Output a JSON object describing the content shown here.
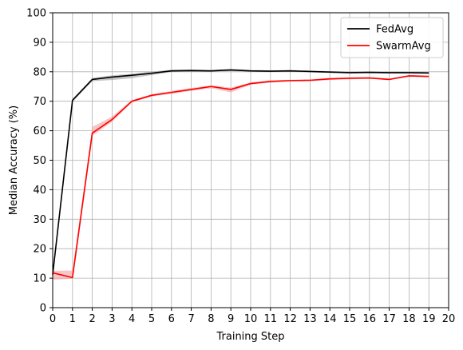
{
  "chart_data": {
    "type": "line",
    "xlabel": "Training Step",
    "ylabel": "Median Accuracy (%)",
    "xlim": [
      0,
      20
    ],
    "ylim": [
      0,
      100
    ],
    "xticks": [
      "0",
      "1",
      "2",
      "3",
      "4",
      "5",
      "6",
      "7",
      "8",
      "9",
      "10",
      "11",
      "12",
      "13",
      "14",
      "15",
      "16",
      "17",
      "18",
      "19",
      "20"
    ],
    "yticks": [
      "0",
      "10",
      "20",
      "30",
      "40",
      "50",
      "60",
      "70",
      "80",
      "90",
      "100"
    ],
    "grid": true,
    "legend_position": "top-right",
    "x": [
      0,
      1,
      2,
      3,
      4,
      5,
      6,
      7,
      8,
      9,
      10,
      11,
      12,
      13,
      14,
      15,
      16,
      17,
      18,
      19
    ],
    "series": [
      {
        "name": "FedAvg",
        "color": "#000000",
        "band_color": "#9e9e9e",
        "values": [
          11.2,
          70.3,
          77.4,
          78.2,
          78.8,
          79.5,
          80.3,
          80.4,
          80.3,
          80.6,
          80.3,
          80.2,
          80.3,
          80.1,
          79.9,
          79.7,
          79.8,
          79.7,
          79.7,
          79.6
        ],
        "lower": [
          10.6,
          69.8,
          76.8,
          77.2,
          77.8,
          78.9,
          79.9,
          80.0,
          80.0,
          80.2,
          80.0,
          79.9,
          80.0,
          79.8,
          79.6,
          79.4,
          79.5,
          79.4,
          79.4,
          79.3
        ],
        "upper": [
          11.8,
          70.8,
          77.9,
          78.8,
          79.3,
          80.0,
          80.7,
          80.8,
          80.6,
          81.0,
          80.6,
          80.5,
          80.6,
          80.4,
          80.2,
          80.0,
          80.1,
          80.0,
          80.0,
          79.9
        ]
      },
      {
        "name": "SwarmAvg",
        "color": "#ff0000",
        "band_color": "#f4a0a0",
        "values": [
          11.8,
          10.2,
          59.2,
          63.8,
          70.0,
          72.0,
          73.0,
          74.0,
          75.0,
          74.0,
          76.0,
          76.7,
          77.0,
          77.1,
          77.6,
          77.8,
          77.9,
          77.4,
          78.6,
          78.4
        ],
        "lower": [
          9.5,
          9.8,
          58.3,
          63.0,
          69.6,
          71.6,
          72.5,
          73.5,
          74.4,
          73.0,
          75.6,
          76.3,
          76.7,
          76.8,
          77.2,
          77.4,
          77.6,
          77.1,
          78.3,
          78.1
        ],
        "upper": [
          12.5,
          12.6,
          61.3,
          64.8,
          70.4,
          72.4,
          73.5,
          74.5,
          75.4,
          74.6,
          76.4,
          77.1,
          77.3,
          77.4,
          77.9,
          78.1,
          78.2,
          77.7,
          78.9,
          78.7
        ]
      }
    ]
  }
}
